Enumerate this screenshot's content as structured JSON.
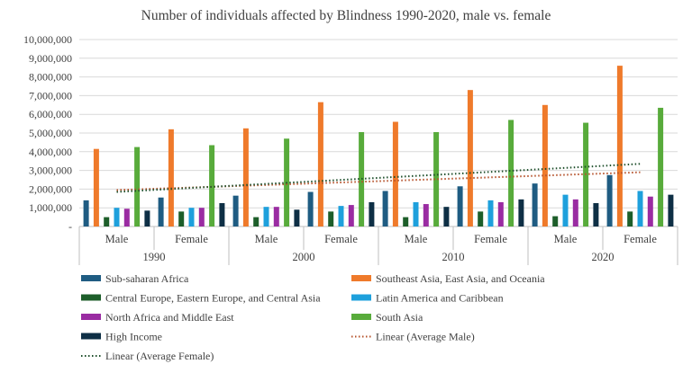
{
  "chart_data": {
    "type": "bar",
    "title": "Number of individuals affected by Blindness 1990-2020, male vs. female",
    "xlabel": "",
    "ylabel": "",
    "ylim": [
      0,
      10000000
    ],
    "y_ticks": [
      "-",
      "1,000,000",
      "2,000,000",
      "3,000,000",
      "4,000,000",
      "5,000,000",
      "6,000,000",
      "7,000,000",
      "8,000,000",
      "9,000,000",
      "10,000,000"
    ],
    "y_tick_values": [
      0,
      1000000,
      2000000,
      3000000,
      4000000,
      5000000,
      6000000,
      7000000,
      8000000,
      9000000,
      10000000
    ],
    "grid": true,
    "legend_position": "bottom",
    "groups": [
      {
        "year": "1990",
        "categories": [
          "Male",
          "Female"
        ]
      },
      {
        "year": "2000",
        "categories": [
          "Male",
          "Female"
        ]
      },
      {
        "year": "2010",
        "categories": [
          "Male",
          "Female"
        ]
      },
      {
        "year": "2020",
        "categories": [
          "Male",
          "Female"
        ]
      }
    ],
    "series": [
      {
        "name": "Sub-saharan Africa",
        "color": "#1f5c82",
        "values": [
          1400000,
          1550000,
          1650000,
          1850000,
          1900000,
          2150000,
          2300000,
          2750000
        ]
      },
      {
        "name": "Southeast Asia, East Asia, and Oceania",
        "color": "#ef7a2b",
        "values": [
          4150000,
          5200000,
          5250000,
          6650000,
          5600000,
          7300000,
          6500000,
          8600000
        ]
      },
      {
        "name": "Central Europe, Eastern Europe, and Central Asia",
        "color": "#1d5e2a",
        "values": [
          500000,
          800000,
          500000,
          800000,
          500000,
          800000,
          550000,
          800000
        ]
      },
      {
        "name": "Latin America and Caribbean",
        "color": "#1ea0dc",
        "values": [
          1000000,
          1000000,
          1050000,
          1100000,
          1300000,
          1400000,
          1700000,
          1900000
        ]
      },
      {
        "name": "North Africa and Middle East",
        "color": "#9a2ca2",
        "values": [
          950000,
          1000000,
          1050000,
          1150000,
          1200000,
          1300000,
          1450000,
          1600000
        ]
      },
      {
        "name": "South Asia",
        "color": "#58ab3b",
        "values": [
          4250000,
          4350000,
          4700000,
          5050000,
          5050000,
          5700000,
          5550000,
          6350000
        ]
      },
      {
        "name": "High Income",
        "color": "#0e2f45",
        "values": [
          850000,
          1250000,
          900000,
          1300000,
          1050000,
          1450000,
          1250000,
          1700000
        ]
      }
    ],
    "trendlines": [
      {
        "name": "Linear (Average Male)",
        "color": "#b5512a",
        "style": "dotted",
        "from": [
          1,
          1950000
        ],
        "to": [
          8,
          2900000
        ]
      },
      {
        "name": "Linear (Average Female)",
        "color": "#1d4e2a",
        "style": "dotted",
        "from": [
          1,
          1850000
        ],
        "to": [
          8,
          3350000
        ]
      }
    ]
  }
}
